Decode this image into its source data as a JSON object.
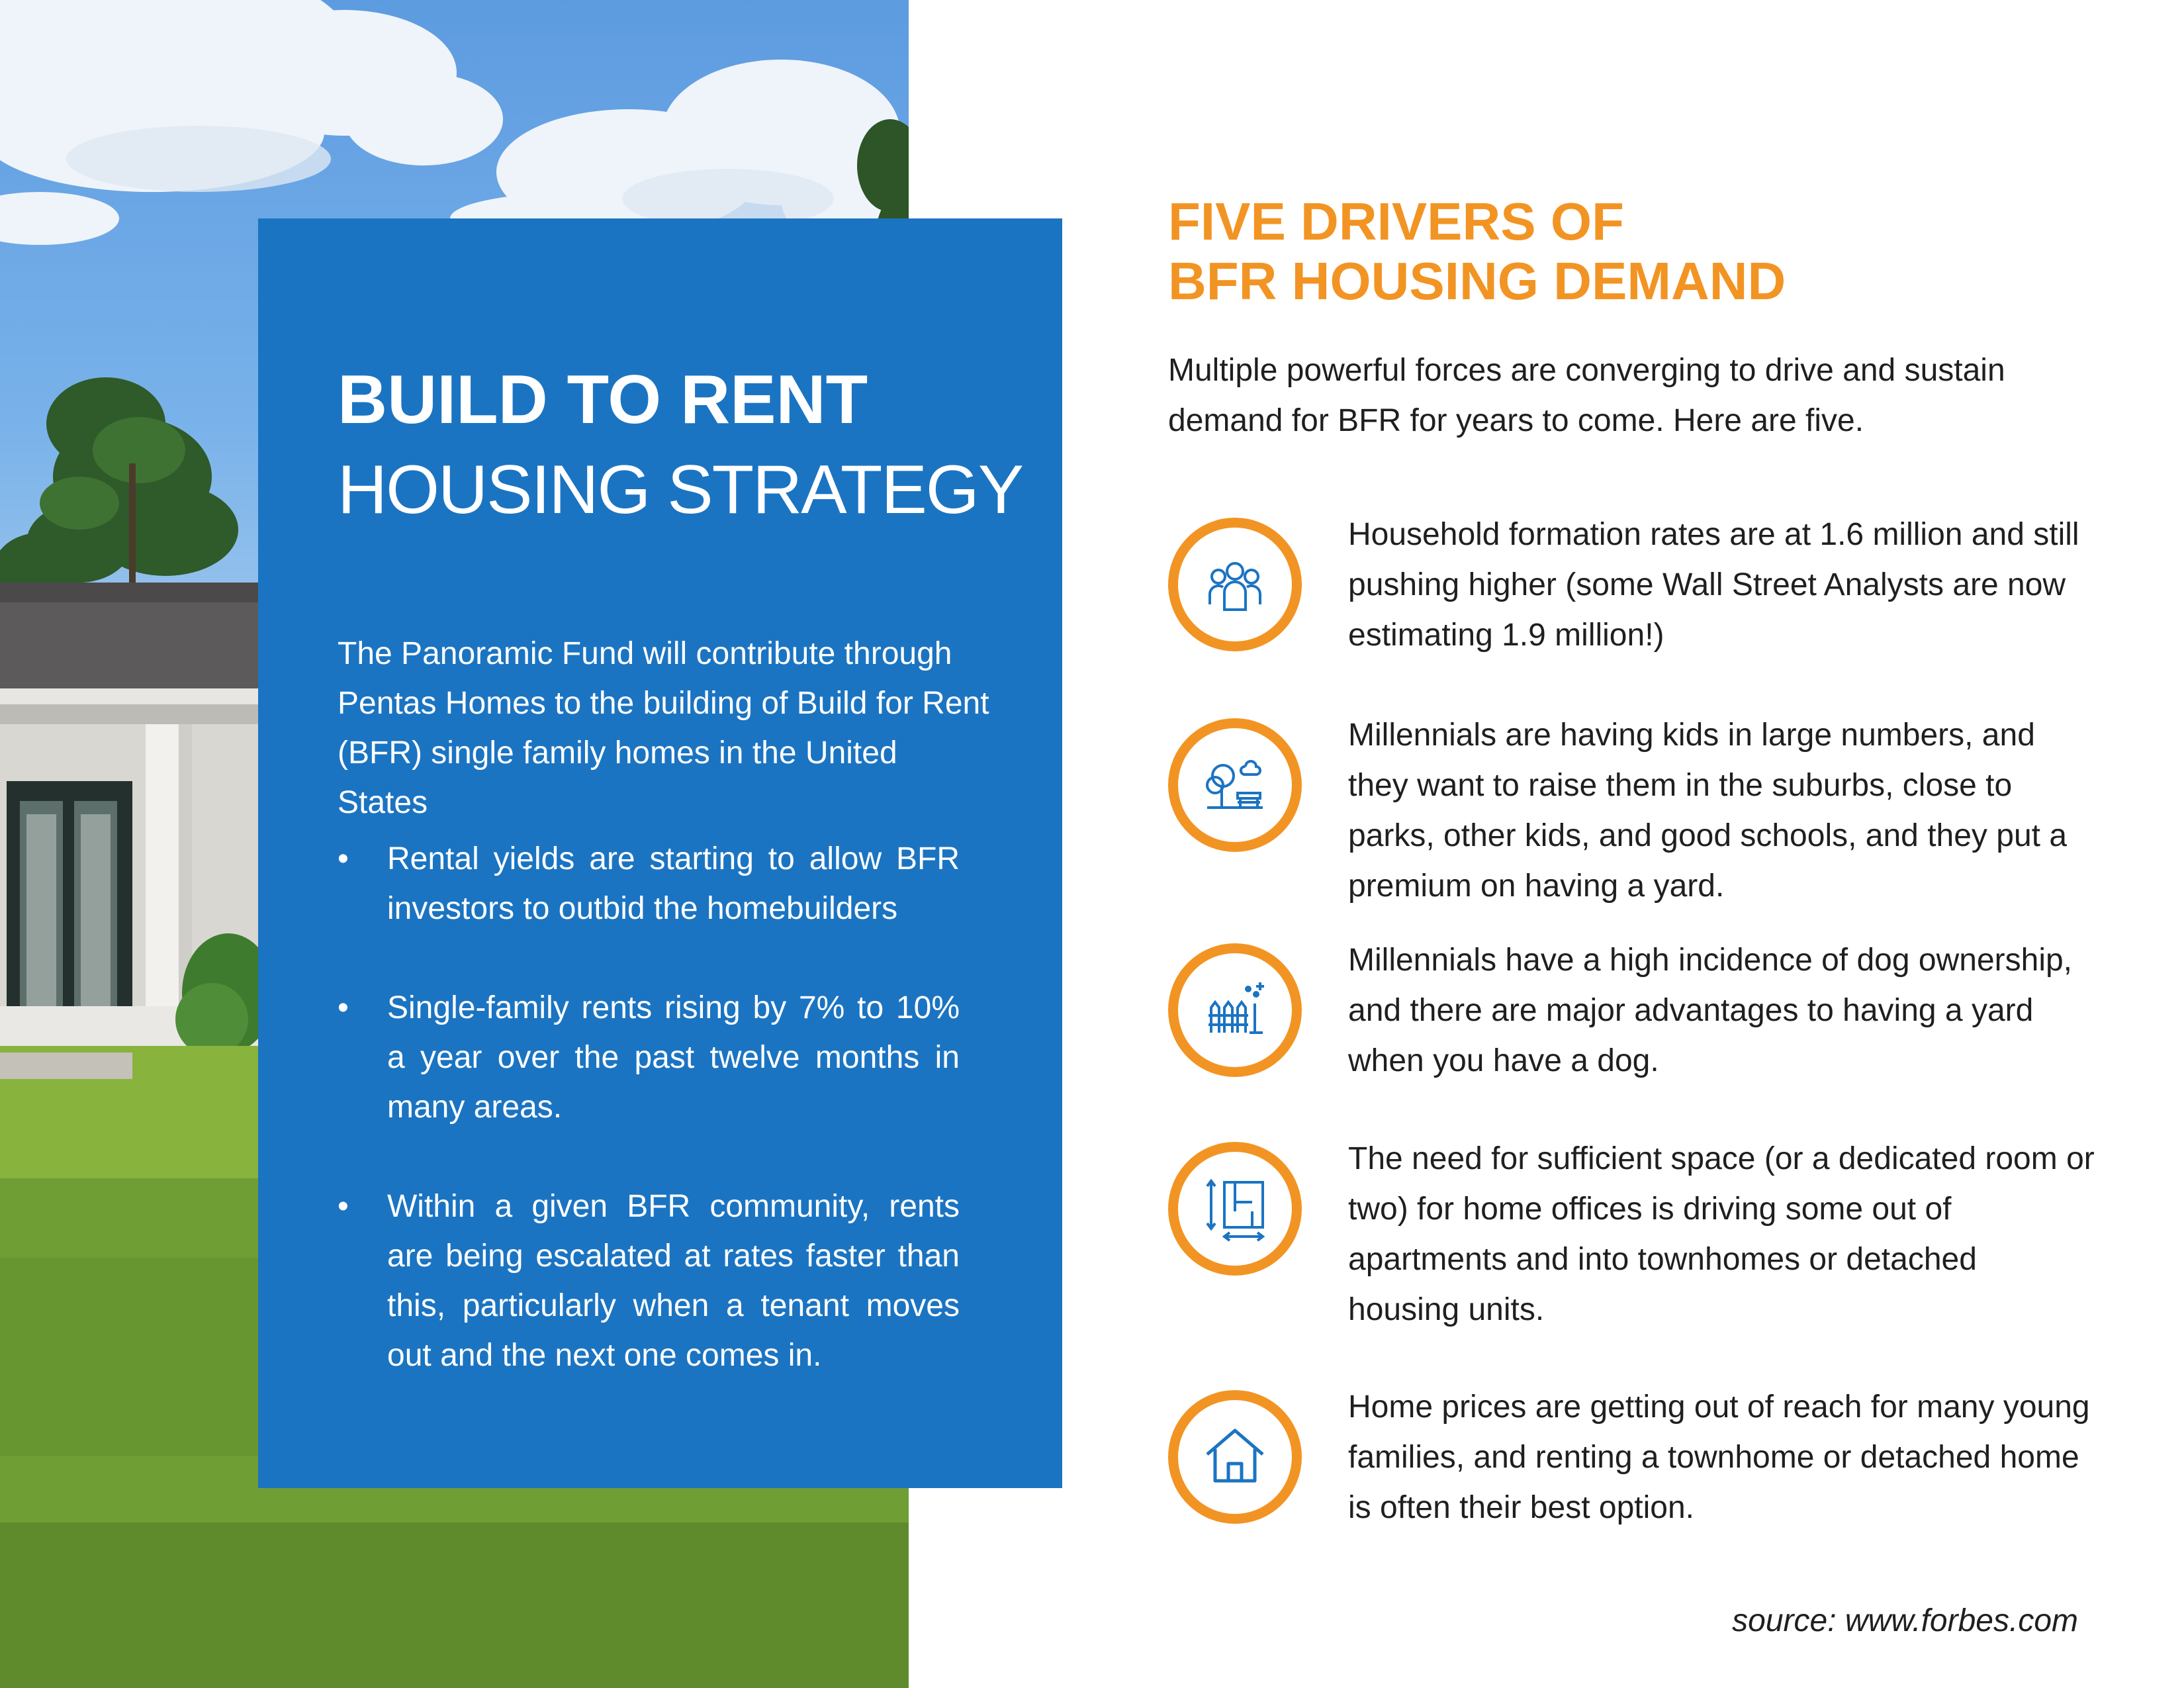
{
  "colors": {
    "accent_orange": "#f29423",
    "card_blue": "#1b74c2",
    "icon_blue": "#1b74c2",
    "text_dark": "#1f1f1f"
  },
  "photo": {
    "icon": "house-photo"
  },
  "card": {
    "title_bold": "BUILD TO RENT",
    "title_light": "HOUSING STRATEGY",
    "intro": "The Panoramic Fund will contribute through Pentas Homes to the building of Build for Rent (BFR) single family homes in the United States",
    "bullets": [
      "Rental yields are starting to allow BFR investors to outbid the homebuilders",
      "Single-family rents rising by 7% to 10% a year over the past twelve months in many areas.",
      "Within a given BFR community, rents are being escalated at rates faster than this, particularly when a tenant moves out and the next one comes in."
    ]
  },
  "right": {
    "heading_line1": "FIVE DRIVERS OF",
    "heading_line2": "BFR HOUSING DEMAND",
    "lead": "Multiple powerful forces are converging to drive and sustain demand for BFR for years to come. Here are five.",
    "drivers": [
      {
        "icon": "people-group-icon",
        "text": "Household formation rates are at 1.6 million and still pushing higher (some Wall Street Analysts are now estimating 1.9 million!)"
      },
      {
        "icon": "park-icon",
        "text": "Millennials are having kids in large numbers, and they want to raise them in the suburbs, close to parks, other kids, and good schools, and they put a premium on having a yard."
      },
      {
        "icon": "yard-fence-icon",
        "text": "Millennials have a high incidence of dog ownership, and there are major advantages to having a yard when you have a dog."
      },
      {
        "icon": "floor-plan-icon",
        "text": "The need for sufficient space (or a dedicated room or two) for home offices is driving some out of apartments and into townhomes or detached housing units."
      },
      {
        "icon": "house-icon",
        "text": "Home prices are getting out of reach for many young families, and renting a townhome or detached home is often their best option."
      }
    ],
    "source": "source: www.forbes.com"
  }
}
